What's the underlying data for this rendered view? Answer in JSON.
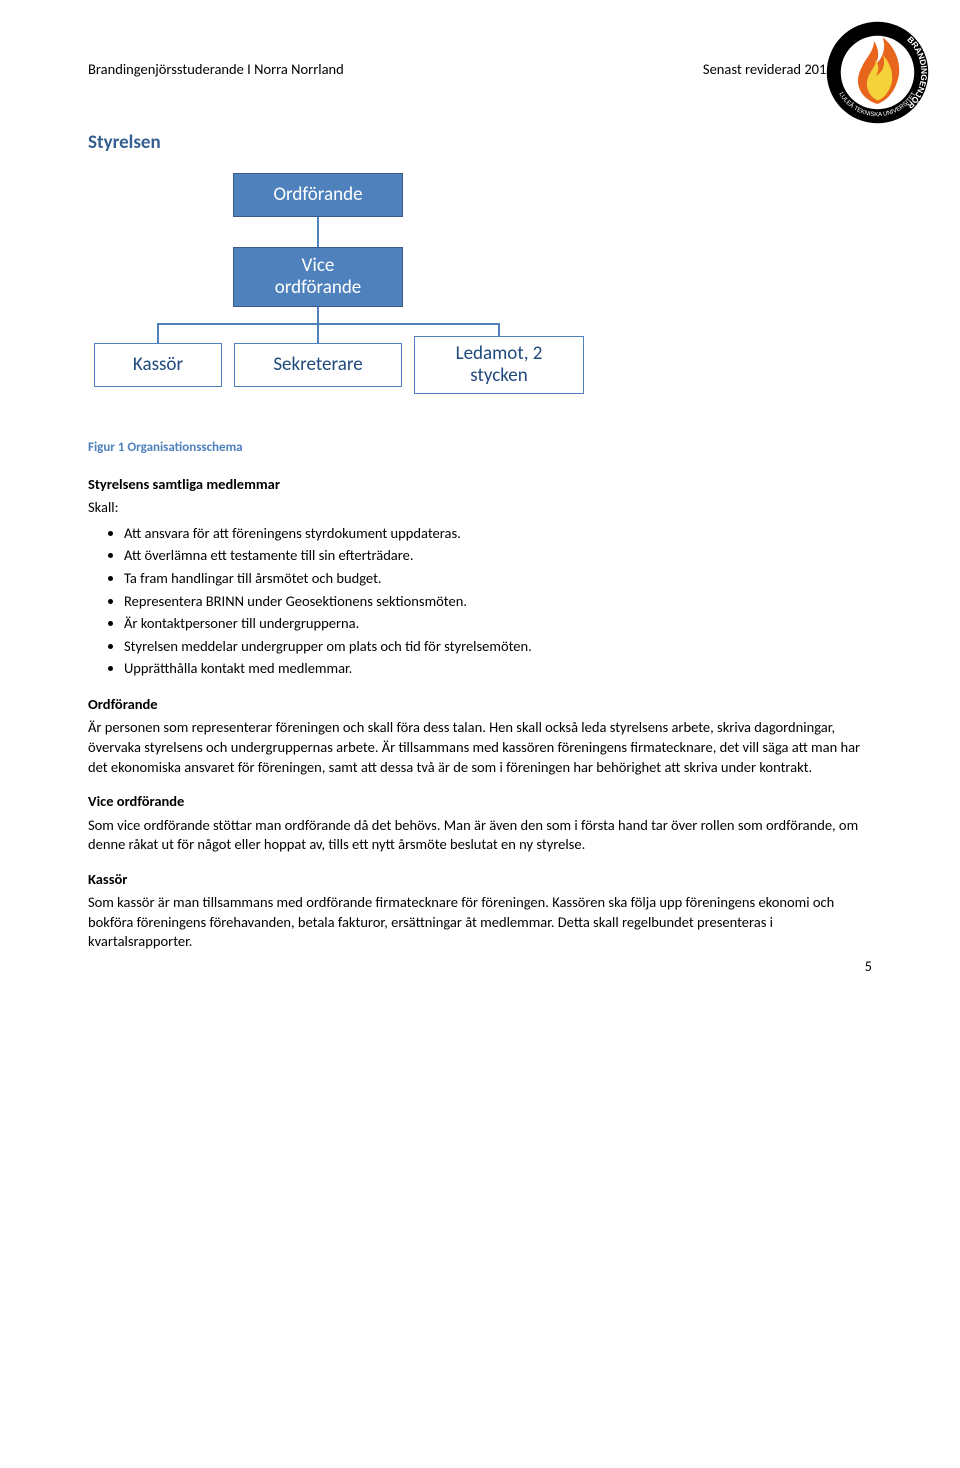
{
  "header": {
    "left": "Brandingenjörsstuderande I Norra Norrland",
    "right": "Senast reviderad 2015-04-01"
  },
  "logo": {
    "top_text": "BRANDINGENJÖR",
    "bottom_text": "LULEÅ TEKNISKA UNIVERSITET",
    "ring_color": "#000000",
    "flame_outer": "#e8651e",
    "flame_inner": "#f6d23a"
  },
  "section_title": "Styrelsen",
  "orgchart": {
    "nodes": {
      "ordforande": "Ordförande",
      "vice": "Vice\nordförande",
      "kassor": "Kassör",
      "sekreterare": "Sekreterare",
      "ledamot": "Ledamot, 2\nstycken"
    },
    "colors": {
      "box_fill": "#4f81bd",
      "box_border": "#3a5a8a",
      "box_text": "#ffffff",
      "light_text": "#1f497d"
    }
  },
  "caption": "Figur 1 Organisationsschema",
  "subheading1": "Styrelsens samtliga medlemmar",
  "skall_label": "Skall:",
  "skall_list": [
    "Att ansvara för att föreningens styrdokument uppdateras.",
    "Att överlämna ett testamente till sin efterträdare.",
    "Ta fram handlingar till årsmötet och budget.",
    "Representera BRINN under Geosektionens sektionsmöten.",
    "Är kontaktpersoner till undergrupperna.",
    "Styrelsen meddelar undergrupper om plats och tid för styrelsemöten.",
    "Upprätthålla kontakt med medlemmar."
  ],
  "roles": {
    "ordforande": {
      "title": "Ordförande",
      "body": "Är personen som representerar föreningen och skall föra dess talan. Hen skall också leda styrelsens arbete, skriva dagordningar, övervaka styrelsens och undergruppernas arbete. Är tillsammans med kassören föreningens firmatecknare, det vill säga att man har det ekonomiska ansvaret för föreningen, samt att dessa två är de som i föreningen har behörighet att skriva under kontrakt."
    },
    "vice": {
      "title": "Vice ordförande",
      "body": "Som vice ordförande stöttar man ordförande då det behövs. Man är även den som i första hand tar över rollen som ordförande, om denne råkat ut för något eller hoppat av, tills ett nytt årsmöte beslutat en ny styrelse."
    },
    "kassor": {
      "title": "Kassör",
      "body": "Som kassör är man tillsammans med ordförande firmatecknare för föreningen. Kassören ska följa upp föreningens ekonomi och bokföra föreningens förehavanden, betala fakturor, ersättningar åt medlemmar. Detta skall regelbundet presenteras i kvartalsrapporter."
    }
  },
  "page_number": "5"
}
